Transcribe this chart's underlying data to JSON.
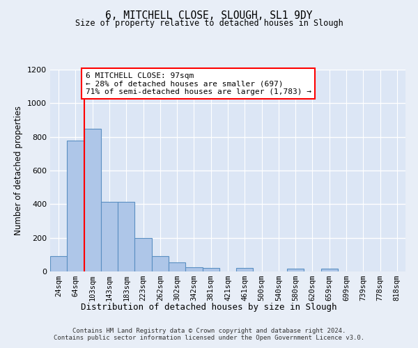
{
  "title_line1": "6, MITCHELL CLOSE, SLOUGH, SL1 9DY",
  "title_line2": "Size of property relative to detached houses in Slough",
  "xlabel": "Distribution of detached houses by size in Slough",
  "ylabel": "Number of detached properties",
  "categories": [
    "24sqm",
    "64sqm",
    "103sqm",
    "143sqm",
    "183sqm",
    "223sqm",
    "262sqm",
    "302sqm",
    "342sqm",
    "381sqm",
    "421sqm",
    "461sqm",
    "500sqm",
    "540sqm",
    "580sqm",
    "620sqm",
    "659sqm",
    "699sqm",
    "739sqm",
    "778sqm",
    "818sqm"
  ],
  "values": [
    90,
    780,
    850,
    415,
    415,
    200,
    90,
    55,
    25,
    20,
    0,
    20,
    0,
    0,
    15,
    0,
    15,
    0,
    0,
    0,
    0
  ],
  "bar_color": "#aec6e8",
  "bar_edge_color": "#5a8fc2",
  "annotation_text": "6 MITCHELL CLOSE: 97sqm\n← 28% of detached houses are smaller (697)\n71% of semi-detached houses are larger (1,783) →",
  "annotation_box_color": "white",
  "annotation_box_edge_color": "red",
  "vline_color": "red",
  "ylim": [
    0,
    1200
  ],
  "yticks": [
    0,
    200,
    400,
    600,
    800,
    1000,
    1200
  ],
  "footer": "Contains HM Land Registry data © Crown copyright and database right 2024.\nContains public sector information licensed under the Open Government Licence v3.0.",
  "bg_color": "#e8eef7",
  "plot_bg_color": "#dce6f5"
}
